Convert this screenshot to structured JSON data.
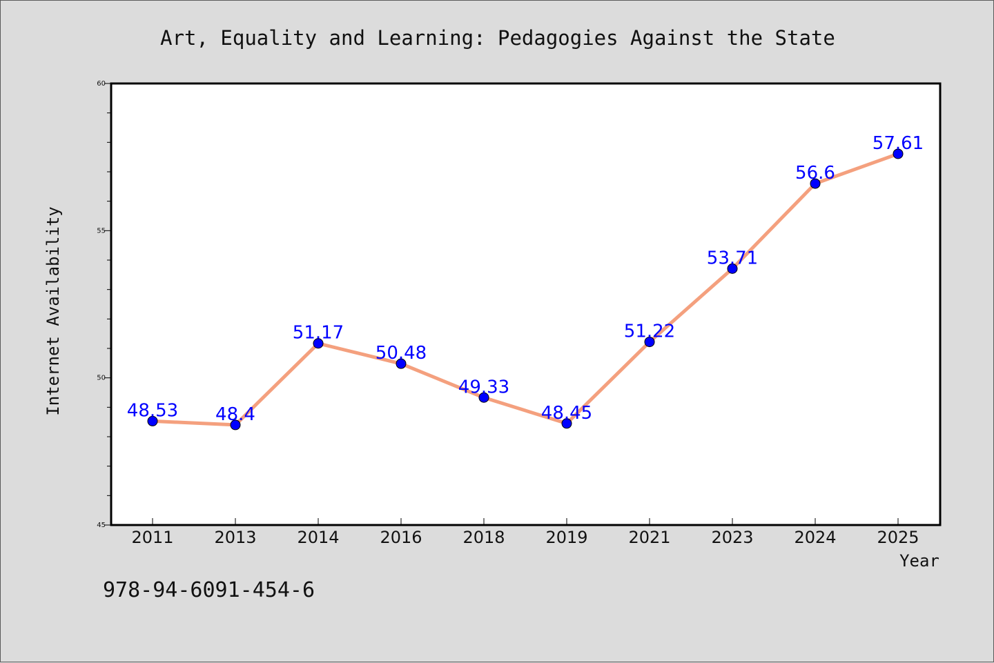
{
  "chart_data": {
    "type": "line",
    "title": "Art, Equality and Learning: Pedagogies Against the State",
    "xlabel": "Year",
    "ylabel": "Internet Availability",
    "categories": [
      "2011",
      "2013",
      "2014",
      "2016",
      "2018",
      "2019",
      "2021",
      "2023",
      "2024",
      "2025"
    ],
    "series": [
      {
        "values": [
          48.53,
          48.4,
          51.17,
          50.48,
          49.33,
          48.45,
          51.22,
          53.71,
          56.6,
          57.61
        ],
        "labels": [
          "48.53",
          "48.4",
          "51.17",
          "50.48",
          "49.33",
          "48.45",
          "51.22",
          "53.71",
          "56.6",
          "57.61"
        ],
        "line_color": "#f4a07e",
        "marker_color": "#0000ff"
      }
    ],
    "ylim": [
      45,
      60
    ],
    "yticks": [
      "45",
      "50",
      "55",
      "60"
    ],
    "grid": false,
    "legend": false
  },
  "footer": {
    "isbn": "978-94-6091-454-6"
  },
  "colors": {
    "background": "#dcdcdc",
    "plot_background": "#ffffff",
    "line": "#f4a07e",
    "marker": "#0000ff",
    "label": "#0000ff"
  }
}
